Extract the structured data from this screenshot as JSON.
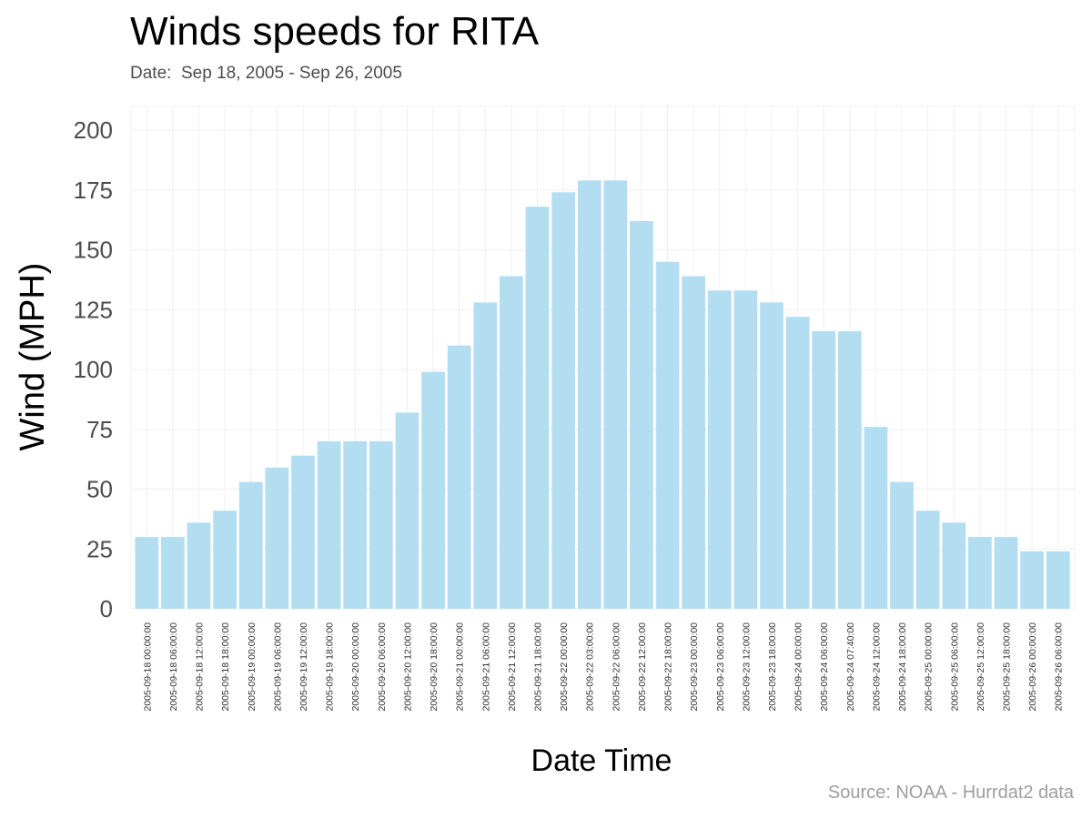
{
  "header": {
    "title": "Winds speeds for RITA",
    "subtitle": "Date:  Sep 18, 2005 - Sep 26, 2005"
  },
  "footer": {
    "caption": "Source: NOAA - Hurrdat2 data"
  },
  "colors": {
    "bar": "#b3def2",
    "grid": "#f0f0f0",
    "axis_text": "#4d4d4d",
    "tick_text": "#333333"
  },
  "chart_data": {
    "type": "bar",
    "title": "Winds speeds for RITA",
    "subtitle": "Date:  Sep 18, 2005 - Sep 26, 2005",
    "xlabel": "Date Time",
    "ylabel": "Wind (MPH)",
    "ylim": [
      0,
      200
    ],
    "yticks": [
      0,
      25,
      50,
      75,
      100,
      125,
      150,
      175,
      200
    ],
    "grid": true,
    "categories": [
      "2005-09-18 00:00:00",
      "2005-09-18 06:00:00",
      "2005-09-18 12:00:00",
      "2005-09-18 18:00:00",
      "2005-09-19 00:00:00",
      "2005-09-19 06:00:00",
      "2005-09-19 12:00:00",
      "2005-09-19 18:00:00",
      "2005-09-20 00:00:00",
      "2005-09-20 06:00:00",
      "2005-09-20 12:00:00",
      "2005-09-20 18:00:00",
      "2005-09-21 00:00:00",
      "2005-09-21 06:00:00",
      "2005-09-21 12:00:00",
      "2005-09-21 18:00:00",
      "2005-09-22 00:00:00",
      "2005-09-22 03:00:00",
      "2005-09-22 06:00:00",
      "2005-09-22 12:00:00",
      "2005-09-22 18:00:00",
      "2005-09-23 00:00:00",
      "2005-09-23 06:00:00",
      "2005-09-23 12:00:00",
      "2005-09-23 18:00:00",
      "2005-09-24 00:00:00",
      "2005-09-24 06:00:00",
      "2005-09-24 07:40:00",
      "2005-09-24 12:00:00",
      "2005-09-24 18:00:00",
      "2005-09-25 00:00:00",
      "2005-09-25 06:00:00",
      "2005-09-25 12:00:00",
      "2005-09-25 18:00:00",
      "2005-09-26 00:00:00",
      "2005-09-26 06:00:00"
    ],
    "values": [
      30,
      30,
      36,
      41,
      53,
      59,
      64,
      70,
      70,
      70,
      82,
      99,
      110,
      128,
      139,
      168,
      174,
      179,
      179,
      162,
      145,
      139,
      133,
      133,
      128,
      122,
      116,
      116,
      76,
      53,
      41,
      36,
      30,
      30,
      24,
      24
    ]
  }
}
